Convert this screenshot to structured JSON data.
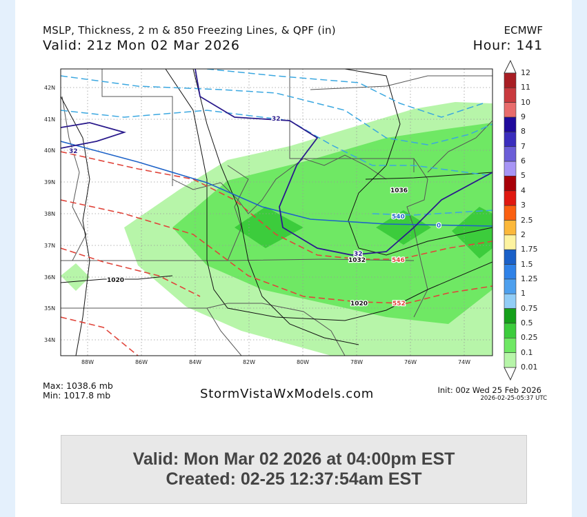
{
  "header": {
    "title": "MSLP, Thickness, 2 m & 850 Freezing Lines, & QPF (in)",
    "valid": "Valid: 21z Mon 02 Mar 2026",
    "model": "ECMWF",
    "hour": "Hour: 141"
  },
  "footer": {
    "max": "Max: 1038.6 mb",
    "min": "Min: 1017.8 mb",
    "site": "StormVistaWxModels.com",
    "init": "Init: 00z Wed 25 Feb 2026",
    "timestamp": "2026-02-25-05:37 UTC"
  },
  "map": {
    "lat_labels": [
      "42N",
      "41N",
      "40N",
      "39N",
      "38N",
      "37N",
      "36N",
      "35N",
      "34N"
    ],
    "lon_labels": [
      "88W",
      "86W",
      "84W",
      "82W",
      "80W",
      "78W",
      "76W",
      "74W"
    ],
    "contour_labels": {
      "mslp": [
        "1036",
        "1032",
        "1020",
        "1020"
      ],
      "thickness": [
        "540",
        "546",
        "552"
      ],
      "freeze_2m": [
        "32",
        "32",
        "32"
      ],
      "freeze_850": [
        "0"
      ]
    },
    "colors": {
      "mslp": "#111111",
      "thickness": "#e0443a",
      "freeze_850": "#1e63c8",
      "freeze_2m": "#2a1a8c",
      "thickness_low": "#3aa7e0"
    }
  },
  "colorbar": {
    "labels": [
      "12",
      "11",
      "10",
      "9",
      "8",
      "7",
      "6",
      "5",
      "4",
      "3",
      "2.5",
      "2",
      "1.75",
      "1.5",
      "1.25",
      "1",
      "0.75",
      "0.5",
      "0.25",
      "0.1",
      "0.01"
    ],
    "colors": [
      "#a81e24",
      "#c93a3e",
      "#e86c6c",
      "#1f0a9c",
      "#3a2dbd",
      "#6b5ed8",
      "#a795f5",
      "#a80008",
      "#e01810",
      "#fb6010",
      "#fcb83a",
      "#fdf3a0",
      "#1a60c8",
      "#2f82e8",
      "#4ea0ee",
      "#92cdf6",
      "#15a01a",
      "#3ccc3c",
      "#6fe864",
      "#b7f5a9"
    ]
  },
  "info": {
    "valid": "Valid: Mon Mar 02 2026 at 04:00pm EST",
    "created": "Created: 02-25 12:37:54am EST"
  }
}
